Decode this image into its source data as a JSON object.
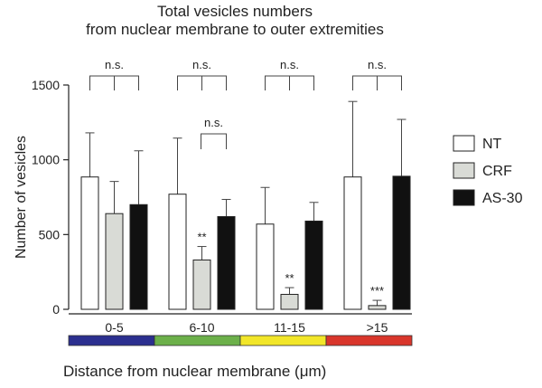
{
  "chart_data": {
    "type": "bar",
    "title": [
      "Total vesicles numbers",
      "from nuclear membrane to outer extremities"
    ],
    "xlabel": "Distance from nuclear membrane (μm)",
    "ylabel": "Number of vesicles",
    "ylim": [
      0,
      1500
    ],
    "yticks": [
      0,
      500,
      1000,
      1500
    ],
    "categories": [
      "0-5",
      "6-10",
      "11-15",
      ">15"
    ],
    "category_colors": [
      "#2b2f8f",
      "#6cb04a",
      "#f2e629",
      "#d9362b"
    ],
    "series": [
      {
        "name": "NT",
        "fill": "#ffffff",
        "values": [
          885,
          770,
          570,
          885
        ],
        "errors": [
          295,
          375,
          245,
          505
        ]
      },
      {
        "name": "CRF",
        "fill": "#d9dbd6",
        "values": [
          640,
          330,
          100,
          25
        ],
        "errors": [
          215,
          90,
          45,
          35
        ]
      },
      {
        "name": "AS-30",
        "fill": "#111111",
        "values": [
          700,
          620,
          590,
          890
        ],
        "errors": [
          360,
          115,
          125,
          380
        ]
      }
    ],
    "significance": [
      {
        "category": "0-5",
        "label": "n.s."
      },
      {
        "category": "6-10",
        "label": "n.s."
      },
      {
        "category": "6-10",
        "label": "n.s."
      },
      {
        "category": "11-15",
        "label": "n.s."
      },
      {
        "category": ">15",
        "label": "n.s."
      }
    ],
    "bar_stars": [
      {
        "category": "6-10",
        "series": "CRF",
        "label": "**"
      },
      {
        "category": "11-15",
        "series": "CRF",
        "label": "**"
      },
      {
        "category": ">15",
        "series": "CRF",
        "label": "***"
      }
    ],
    "legend": {
      "position": "right"
    }
  }
}
